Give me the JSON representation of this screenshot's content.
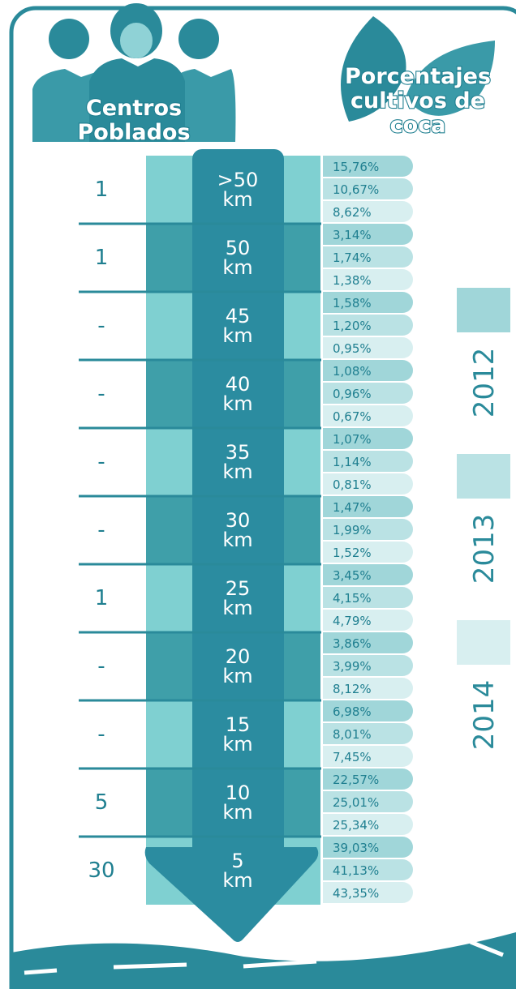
{
  "header": {
    "left_title": [
      "Centros",
      "Poblados"
    ],
    "right_title": [
      "Porcentajes",
      "cultivos de",
      "coca"
    ]
  },
  "legend": {
    "years": [
      {
        "label": "2012",
        "color": "#a0d6d9"
      },
      {
        "label": "2013",
        "color": "#bae2e4"
      },
      {
        "label": "2014",
        "color": "#d8eff0"
      }
    ]
  },
  "rows": [
    {
      "centros": "1",
      "distance": ">50",
      "unit": "km",
      "percentages": [
        "15,76%",
        "10,67%",
        "8,62%"
      ]
    },
    {
      "centros": "1",
      "distance": "50",
      "unit": "km",
      "percentages": [
        "3,14%",
        "1,74%",
        "1,38%"
      ]
    },
    {
      "centros": "-",
      "distance": "45",
      "unit": "km",
      "percentages": [
        "1,58%",
        "1,20%",
        "0,95%"
      ]
    },
    {
      "centros": "-",
      "distance": "40",
      "unit": "km",
      "percentages": [
        "1,08%",
        "0,96%",
        "0,67%"
      ]
    },
    {
      "centros": "-",
      "distance": "35",
      "unit": "km",
      "percentages": [
        "1,07%",
        "1,14%",
        "0,81%"
      ]
    },
    {
      "centros": "-",
      "distance": "30",
      "unit": "km",
      "percentages": [
        "1,47%",
        "1,99%",
        "1,52%"
      ]
    },
    {
      "centros": "1",
      "distance": "25",
      "unit": "km",
      "percentages": [
        "3,45%",
        "4,15%",
        "4,79%"
      ]
    },
    {
      "centros": "-",
      "distance": "20",
      "unit": "km",
      "percentages": [
        "3,86%",
        "3,99%",
        "8,12%"
      ]
    },
    {
      "centros": "-",
      "distance": "15",
      "unit": "km",
      "percentages": [
        "6,98%",
        "8,01%",
        "7,45%"
      ]
    },
    {
      "centros": "5",
      "distance": "10",
      "unit": "km",
      "percentages": [
        "22,57%",
        "25,01%",
        "25,34%"
      ]
    },
    {
      "centros": "30",
      "distance": "5",
      "unit": "km",
      "percentages": [
        "39,03%",
        "41,13%",
        "43,35%"
      ]
    }
  ]
}
